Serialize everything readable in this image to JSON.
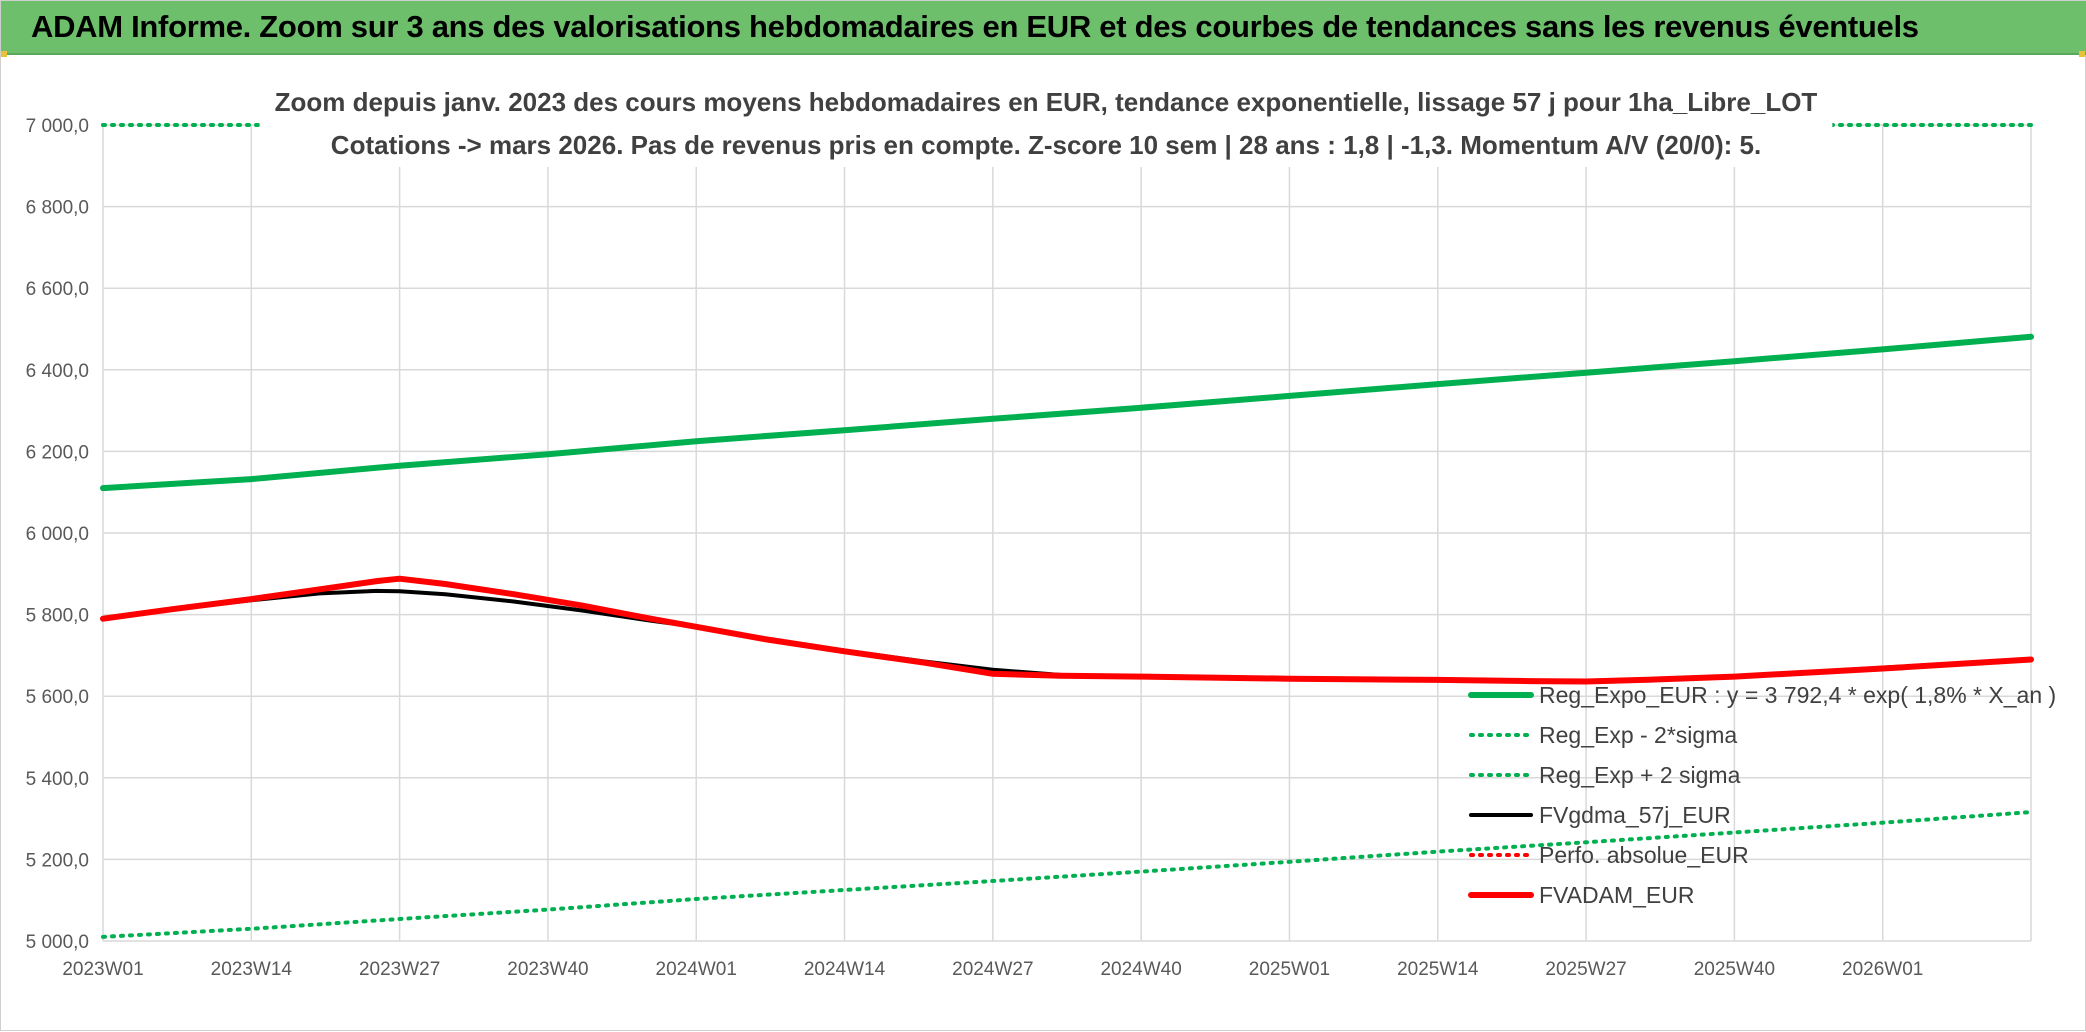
{
  "banner": {
    "title": "ADAM Informe. Zoom sur 3 ans des valorisations hebdomadaires en EUR et des courbes de tendances sans les revenus éventuels"
  },
  "chart_data": {
    "type": "line",
    "title_line1": "Zoom depuis janv. 2023 des cours moyens hebdomadaires en EUR, tendance exponentielle, lissage 57 j pour 1ha_Libre_LOT",
    "title_line2": "Cotations -> mars 2026. Pas de revenus pris en compte. Z-score 10 sem | 28 ans : 1,8 | -1,3. Momentum A/V (20/0): 5.",
    "x_tick_labels": [
      "2023W01",
      "2023W14",
      "2023W27",
      "2023W40",
      "2024W01",
      "2024W14",
      "2024W27",
      "2024W40",
      "2025W01",
      "2025W14",
      "2025W27",
      "2025W40",
      "2026W01"
    ],
    "x_range_weeks": [
      0,
      169
    ],
    "ylim": [
      5000,
      7000
    ],
    "y_ticks": [
      5000,
      5200,
      5400,
      5600,
      5800,
      6000,
      6200,
      6400,
      6600,
      6800,
      7000
    ],
    "y_tick_labels": [
      "5 000,0",
      "5 200,0",
      "5 400,0",
      "5 600,0",
      "5 800,0",
      "6 000,0",
      "6 200,0",
      "6 400,0",
      "6 600,0",
      "6 800,0",
      "7 000,0"
    ],
    "grid": true,
    "legend_position": "bottom-right",
    "series": [
      {
        "name": "Reg_Expo_EUR : y = 3 792,4 * exp( 1,8% *  X_an )",
        "color": "#00b050",
        "style": "solid-thick",
        "points": [
          [
            0,
            6110
          ],
          [
            13,
            6132
          ],
          [
            26,
            6165
          ],
          [
            39,
            6193
          ],
          [
            52,
            6225
          ],
          [
            65,
            6252
          ],
          [
            78,
            6280
          ],
          [
            91,
            6307
          ],
          [
            104,
            6336
          ],
          [
            117,
            6365
          ],
          [
            130,
            6393
          ],
          [
            143,
            6421
          ],
          [
            156,
            6450
          ],
          [
            169,
            6481
          ]
        ]
      },
      {
        "name": "Reg_Exp - 2*sigma",
        "color": "#00b050",
        "style": "dotted",
        "points": [
          [
            0,
            5010
          ],
          [
            13,
            5030
          ],
          [
            26,
            5054
          ],
          [
            39,
            5077
          ],
          [
            52,
            5103
          ],
          [
            65,
            5125
          ],
          [
            78,
            5147
          ],
          [
            91,
            5170
          ],
          [
            104,
            5194
          ],
          [
            117,
            5219
          ],
          [
            130,
            5242
          ],
          [
            143,
            5266
          ],
          [
            156,
            5290
          ],
          [
            169,
            5316
          ]
        ]
      },
      {
        "name": "Reg_Exp + 2 sigma",
        "color": "#00b050",
        "style": "dotted",
        "points": [
          [
            0,
            7000
          ],
          [
            169,
            7000
          ]
        ]
      },
      {
        "name": "FVgdma_57j_EUR",
        "color": "#000000",
        "style": "solid",
        "points": [
          [
            0,
            5790
          ],
          [
            6,
            5812
          ],
          [
            13,
            5835
          ],
          [
            19,
            5852
          ],
          [
            24,
            5858
          ],
          [
            26,
            5857
          ],
          [
            30,
            5850
          ],
          [
            36,
            5832
          ],
          [
            42,
            5810
          ],
          [
            48,
            5785
          ],
          [
            52,
            5770
          ],
          [
            58,
            5740
          ],
          [
            65,
            5712
          ],
          [
            72,
            5685
          ],
          [
            78,
            5665
          ],
          [
            84,
            5652
          ],
          [
            91,
            5648
          ],
          [
            104,
            5643
          ],
          [
            117,
            5640
          ],
          [
            125,
            5638
          ],
          [
            130,
            5638
          ],
          [
            136,
            5642
          ],
          [
            143,
            5648
          ],
          [
            156,
            5670
          ],
          [
            169,
            5690
          ]
        ]
      },
      {
        "name": "Perfo. absolue_EUR",
        "color": "#ff0000",
        "style": "dotted",
        "points": []
      },
      {
        "name": "FVADAM_EUR",
        "color": "#ff0000",
        "style": "solid-thick",
        "points": [
          [
            0,
            5790
          ],
          [
            6,
            5813
          ],
          [
            13,
            5838
          ],
          [
            19,
            5862
          ],
          [
            24,
            5882
          ],
          [
            26,
            5888
          ],
          [
            30,
            5875
          ],
          [
            36,
            5850
          ],
          [
            42,
            5822
          ],
          [
            48,
            5790
          ],
          [
            52,
            5770
          ],
          [
            58,
            5740
          ],
          [
            65,
            5710
          ],
          [
            72,
            5682
          ],
          [
            78,
            5655
          ],
          [
            84,
            5650
          ],
          [
            91,
            5648
          ],
          [
            104,
            5643
          ],
          [
            117,
            5640
          ],
          [
            125,
            5637
          ],
          [
            130,
            5636
          ],
          [
            136,
            5641
          ],
          [
            143,
            5648
          ],
          [
            156,
            5668
          ],
          [
            169,
            5690
          ]
        ]
      }
    ]
  }
}
